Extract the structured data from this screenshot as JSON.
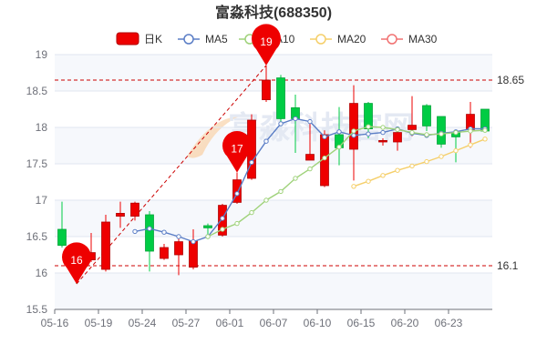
{
  "chart_data": {
    "type": "candlestick",
    "title": "富淼科技(688350)",
    "colors": {
      "up": "#ee0000",
      "down": "#00cc44",
      "ma5": "#5b7ec6",
      "ma10": "#9fd27a",
      "ma20": "#f5cf6a",
      "ma30": "#f17272",
      "refline": "#cc0000",
      "marker": "#ee0000"
    },
    "legend": [
      {
        "name": "日K",
        "key": "k"
      },
      {
        "name": "MA5",
        "key": "ma5"
      },
      {
        "name": "MA10",
        "key": "ma10"
      },
      {
        "name": "MA20",
        "key": "ma20"
      },
      {
        "name": "MA30",
        "key": "ma30"
      }
    ],
    "ylim": [
      15.5,
      19.0
    ],
    "yticks": [
      15.5,
      16,
      16.5,
      17,
      17.5,
      18,
      18.5,
      19
    ],
    "xtick_labels": [
      "05-16",
      "05-19",
      "05-24",
      "05-27",
      "06-01",
      "06-07",
      "06-10",
      "06-15",
      "06-20",
      "06-23"
    ],
    "xtick_positions": [
      0,
      3,
      6,
      9,
      12,
      15,
      18,
      21,
      24,
      27
    ],
    "candles": [
      {
        "o": 16.6,
        "c": 16.38,
        "h": 16.98,
        "l": 16.35
      },
      {
        "o": 16.2,
        "c": 16.18,
        "h": 16.25,
        "l": 15.85
      },
      {
        "o": 16.18,
        "c": 16.28,
        "h": 16.55,
        "l": 16.15
      },
      {
        "o": 16.05,
        "c": 16.7,
        "h": 16.8,
        "l": 16.02
      },
      {
        "o": 16.78,
        "c": 16.82,
        "h": 16.98,
        "l": 16.62
      },
      {
        "o": 16.78,
        "c": 16.96,
        "h": 16.98,
        "l": 16.72
      },
      {
        "o": 16.8,
        "c": 16.3,
        "h": 16.85,
        "l": 16.02
      },
      {
        "o": 16.2,
        "c": 16.35,
        "h": 16.4,
        "l": 16.18
      },
      {
        "o": 16.25,
        "c": 16.43,
        "h": 16.52,
        "l": 15.97
      },
      {
        "o": 16.08,
        "c": 16.44,
        "h": 16.6,
        "l": 16.05
      },
      {
        "o": 16.65,
        "c": 16.62,
        "h": 16.68,
        "l": 16.52
      },
      {
        "o": 16.52,
        "c": 16.93,
        "h": 16.95,
        "l": 16.5
      },
      {
        "o": 16.97,
        "c": 17.28,
        "h": 17.38,
        "l": 16.95
      },
      {
        "o": 17.3,
        "c": 18.1,
        "h": 18.18,
        "l": 17.28
      },
      {
        "o": 18.38,
        "c": 18.65,
        "h": 18.85,
        "l": 18.35
      },
      {
        "o": 18.68,
        "c": 18.12,
        "h": 18.72,
        "l": 18.08
      },
      {
        "o": 18.27,
        "c": 18.12,
        "h": 18.45,
        "l": 17.65
      },
      {
        "o": 17.55,
        "c": 17.63,
        "h": 18.1,
        "l": 17.55
      },
      {
        "o": 17.2,
        "c": 17.9,
        "h": 17.96,
        "l": 17.18
      },
      {
        "o": 17.9,
        "c": 17.72,
        "h": 18.28,
        "l": 17.48
      },
      {
        "o": 17.7,
        "c": 18.33,
        "h": 18.58,
        "l": 17.27
      },
      {
        "o": 18.33,
        "c": 17.98,
        "h": 18.35,
        "l": 17.85
      },
      {
        "o": 17.8,
        "c": 17.82,
        "h": 17.85,
        "l": 17.75
      },
      {
        "o": 17.8,
        "c": 17.93,
        "h": 17.98,
        "l": 17.68
      },
      {
        "o": 17.97,
        "c": 18.03,
        "h": 18.43,
        "l": 17.88
      },
      {
        "o": 18.3,
        "c": 18.02,
        "h": 18.32,
        "l": 17.95
      },
      {
        "o": 18.15,
        "c": 17.77,
        "h": 18.15,
        "l": 17.72
      },
      {
        "o": 17.93,
        "c": 17.87,
        "h": 17.95,
        "l": 17.52
      },
      {
        "o": 17.97,
        "c": 18.18,
        "h": 18.35,
        "l": 17.72
      },
      {
        "o": 18.25,
        "c": 17.95,
        "h": 18.25,
        "l": 17.93
      }
    ],
    "ma5": [
      null,
      null,
      null,
      null,
      null,
      16.57,
      16.61,
      16.56,
      16.5,
      16.43,
      16.5,
      16.75,
      17.09,
      17.52,
      17.81,
      18.05,
      18.12,
      18.08,
      17.87,
      17.94,
      17.89,
      17.91,
      17.93,
      17.98,
      17.92,
      17.89,
      17.92,
      17.94,
      17.98,
      17.98
    ],
    "ma10": [
      null,
      null,
      null,
      null,
      null,
      null,
      null,
      null,
      null,
      null,
      16.5,
      16.6,
      16.68,
      16.83,
      17.0,
      17.12,
      17.3,
      17.43,
      17.58,
      17.73,
      17.95,
      18.01,
      18.0,
      17.97,
      17.93,
      17.9,
      17.91,
      17.93,
      17.95,
      17.96
    ],
    "ma20": [
      null,
      null,
      null,
      null,
      null,
      null,
      null,
      null,
      null,
      null,
      null,
      null,
      null,
      null,
      null,
      null,
      null,
      null,
      null,
      null,
      17.19,
      17.26,
      17.34,
      17.41,
      17.47,
      17.53,
      17.6,
      17.68,
      17.76,
      17.84
    ],
    "ma30": [],
    "reflines": [
      {
        "label": "18.65",
        "value": 18.65
      },
      {
        "label": "16.1",
        "value": 16.1
      }
    ],
    "markers": [
      {
        "label": "16",
        "index": 1,
        "value": 15.85
      },
      {
        "label": "17",
        "index": 12,
        "value": 17.38
      },
      {
        "label": "19",
        "index": 14,
        "value": 18.85
      }
    ],
    "trend_line": {
      "from_index": 1,
      "from_value": 15.85,
      "to_index": 14,
      "to_value": 18.85
    },
    "watermark": "富淼科技官网"
  }
}
